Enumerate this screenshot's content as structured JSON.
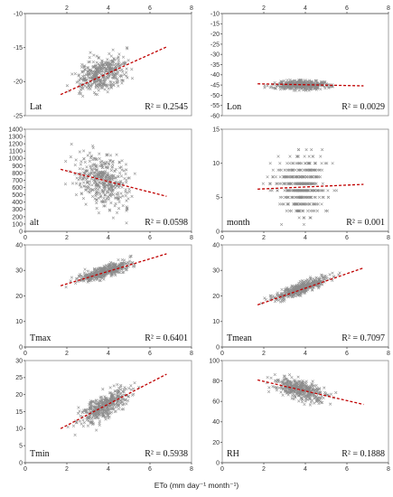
{
  "xlabel_text": "ETo (mm day⁻¹ month⁻¹)",
  "colors": {
    "points": "#8c8c8c",
    "trend": "#c00000"
  },
  "chart_data": [
    {
      "type": "scatter",
      "label": "Lat",
      "r2": "R² = 0.2545",
      "x_range": [
        0,
        8
      ],
      "xticks": [
        2,
        4,
        6,
        8
      ],
      "ylim": [
        -25,
        -10
      ],
      "yticks": [
        -25,
        -20,
        -15,
        -10
      ],
      "xaxis_top": true,
      "cloud": {
        "x_mean": 3.7,
        "x_sd": 0.85,
        "y_base": -18.8,
        "slope": 0.85,
        "y_sd": 1.7,
        "y_min": -22.5,
        "y_max": -14.5
      },
      "trend": {
        "x": [
          1.7,
          6.8
        ],
        "y": [
          -21.9,
          -14.9
        ]
      }
    },
    {
      "type": "scatter",
      "label": "Lon",
      "r2": "R² = 0.0029",
      "x_range": [
        0,
        8
      ],
      "xticks": [
        2,
        4,
        6,
        8
      ],
      "ylim": [
        -60,
        -10
      ],
      "yticks": [
        -60,
        -55,
        -50,
        -45,
        -40,
        -35,
        -30,
        -25,
        -20,
        -15,
        -10
      ],
      "xaxis_top": true,
      "cloud": {
        "x_mean": 3.8,
        "x_sd": 0.85,
        "y_base": -45,
        "slope": 0.1,
        "y_sd": 1.5,
        "y_min": -49,
        "y_max": -41
      },
      "trend": {
        "x": [
          1.7,
          6.8
        ],
        "y": [
          -44.4,
          -45.4
        ]
      }
    },
    {
      "type": "scatter",
      "label": "alt",
      "r2": "R² = 0.0598",
      "x_range": [
        0,
        8
      ],
      "xticks": [
        0,
        2,
        4,
        6,
        8
      ],
      "ylim": [
        0,
        1400
      ],
      "yticks": [
        0,
        100,
        200,
        300,
        400,
        500,
        600,
        700,
        800,
        900,
        1000,
        1100,
        1200,
        1300,
        1400
      ],
      "xaxis_top": false,
      "cloud": {
        "x_mean": 3.7,
        "x_sd": 0.9,
        "y_base": 690,
        "slope": -80,
        "y_sd": 250,
        "y_min": 40,
        "y_max": 1310
      },
      "trend": {
        "x": [
          1.7,
          6.8
        ],
        "y": [
          850,
          480
        ]
      }
    },
    {
      "type": "scatter",
      "label": "month",
      "r2": "R² = 0.001",
      "x_range": [
        0,
        8
      ],
      "xticks": [
        0,
        2,
        4,
        6,
        8
      ],
      "ylim": [
        0,
        15
      ],
      "yticks": [
        0,
        5,
        10,
        15
      ],
      "xaxis_top": false,
      "cloud": {
        "x_mean": 3.8,
        "x_sd": 0.85,
        "y_base": 6.5,
        "slope": 0,
        "y_sd": 3.2,
        "y_min": 1,
        "y_max": 12,
        "integer_y": true
      },
      "trend": {
        "x": [
          1.7,
          6.8
        ],
        "y": [
          6.2,
          6.9
        ]
      }
    },
    {
      "type": "scatter",
      "label": "Tmax",
      "r2": "R² = 0.6401",
      "x_range": [
        0,
        8
      ],
      "xticks": [
        0,
        2,
        4,
        6,
        8
      ],
      "ylim": [
        0,
        40
      ],
      "yticks": [
        0,
        10,
        20,
        30,
        40
      ],
      "xaxis_top": false,
      "cloud": {
        "x_mean": 3.8,
        "x_sd": 0.85,
        "y_base": 29.5,
        "slope": 2.4,
        "y_sd": 1.6,
        "y_min": 21,
        "y_max": 36
      },
      "trend": {
        "x": [
          1.7,
          6.8
        ],
        "y": [
          24,
          36.5
        ]
      }
    },
    {
      "type": "scatter",
      "label": "Tmean",
      "r2": "R² = 0.7097",
      "x_range": [
        0,
        8
      ],
      "xticks": [
        0,
        2,
        4,
        6,
        8
      ],
      "ylim": [
        0,
        40
      ],
      "yticks": [
        0,
        10,
        20,
        30,
        40
      ],
      "xaxis_top": false,
      "cloud": {
        "x_mean": 3.8,
        "x_sd": 0.85,
        "y_base": 23,
        "slope": 2.9,
        "y_sd": 1.6,
        "y_min": 13,
        "y_max": 30
      },
      "trend": {
        "x": [
          1.7,
          6.8
        ],
        "y": [
          16.5,
          31
        ]
      }
    },
    {
      "type": "scatter",
      "label": "Tmin",
      "r2": "R² = 0.5938",
      "x_range": [
        0,
        8
      ],
      "xticks": [
        0,
        2,
        4,
        6,
        8
      ],
      "ylim": [
        0,
        30
      ],
      "yticks": [
        0,
        5,
        10,
        15,
        20,
        25,
        30
      ],
      "xaxis_top": false,
      "cloud": {
        "x_mean": 3.8,
        "x_sd": 0.85,
        "y_base": 16.5,
        "slope": 3.1,
        "y_sd": 2.4,
        "y_min": 6,
        "y_max": 25
      },
      "trend": {
        "x": [
          1.7,
          6.8
        ],
        "y": [
          10,
          26
        ]
      }
    },
    {
      "type": "scatter",
      "label": "RH",
      "r2": "R² = 0.1888",
      "x_range": [
        0,
        8
      ],
      "xticks": [
        0,
        2,
        4,
        6,
        8
      ],
      "ylim": [
        0,
        100
      ],
      "yticks": [
        0,
        20,
        40,
        60,
        80,
        100
      ],
      "xaxis_top": false,
      "cloud": {
        "x_mean": 3.8,
        "x_sd": 0.85,
        "y_base": 71,
        "slope": -5,
        "y_sd": 6.5,
        "y_min": 45,
        "y_max": 90
      },
      "trend": {
        "x": [
          1.7,
          6.8
        ],
        "y": [
          81,
          57
        ]
      }
    }
  ]
}
